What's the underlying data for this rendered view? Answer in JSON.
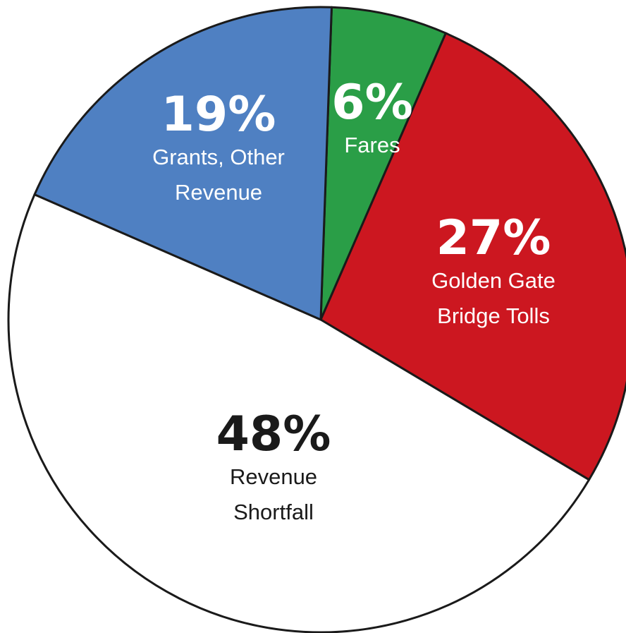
{
  "chart_data": {
    "type": "pie",
    "title": "",
    "start_angle_deg": 0,
    "direction": "clockwise",
    "slices": [
      {
        "value": 6,
        "pct_label": "6%",
        "label_lines": [
          "Fares"
        ],
        "color": "#2a9e47",
        "text_color": "#ffffff"
      },
      {
        "value": 27,
        "pct_label": "27%",
        "label_lines": [
          "Golden Gate",
          "Bridge Tolls"
        ],
        "color": "#cc1720",
        "text_color": "#ffffff"
      },
      {
        "value": 48,
        "pct_label": "48%",
        "label_lines": [
          "Revenue",
          "Shortfall"
        ],
        "color": "#ffffff",
        "text_color": "#1a1a1a"
      },
      {
        "value": 19,
        "pct_label": "19%",
        "label_lines": [
          "Grants, Other",
          "Revenue"
        ],
        "color": "#4f80c2",
        "text_color": "#ffffff"
      }
    ],
    "outline_color": "#1a1a1a"
  }
}
